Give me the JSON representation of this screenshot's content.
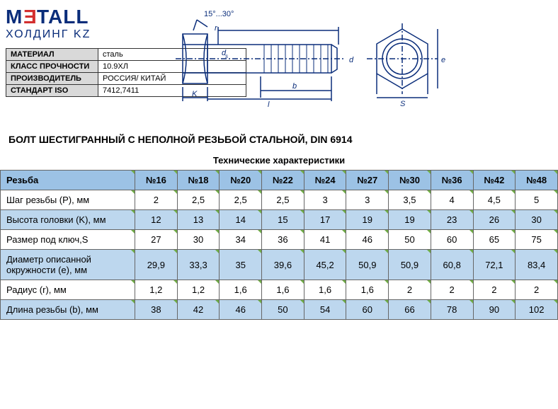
{
  "logo": {
    "text1": "M",
    "text2": "E",
    "text3": "TALL",
    "subtitle": "ХОЛДИНГ KZ"
  },
  "info": [
    {
      "label": "МАТЕРИАЛ",
      "value": "сталь"
    },
    {
      "label": "КЛАСС ПРОЧНОСТИ",
      "value": "10.9ХЛ"
    },
    {
      "label": "ПРОИЗВОДИТЕЛЬ",
      "value": "РОССИЯ/ КИТАЙ"
    },
    {
      "label": "СТАНДАРТ ISO",
      "value": "7412,7411"
    }
  ],
  "diagram_angle": "15°...30°",
  "title": "БОЛТ ШЕСТИГРАННЫЙ С НЕПОЛНОЙ РЕЗЬБОЙ СТАЛЬНОЙ, DIN 6914",
  "spec_title": "Технические характеристики",
  "columns_header": "Резьба",
  "columns": [
    "№16",
    "№18",
    "№20",
    "№22",
    "№24",
    "№27",
    "№30",
    "№36",
    "№42",
    "№48"
  ],
  "rows": [
    {
      "label": "Шаг резьбы (P), мм",
      "values": [
        "2",
        "2,5",
        "2,5",
        "2,5",
        "3",
        "3",
        "3,5",
        "4",
        "4,5",
        "5"
      ]
    },
    {
      "label": "Высота головки (K), мм",
      "values": [
        "12",
        "13",
        "14",
        "15",
        "17",
        "19",
        "19",
        "23",
        "26",
        "30"
      ]
    },
    {
      "label": "Размер под ключ,S",
      "values": [
        "27",
        "30",
        "34",
        "36",
        "41",
        "46",
        "50",
        "60",
        "65",
        "75"
      ]
    },
    {
      "label": "Диаметр описанной окружности (e), мм",
      "values": [
        "29,9",
        "33,3",
        "35",
        "39,6",
        "45,2",
        "50,9",
        "50,9",
        "60,8",
        "72,1",
        "83,4"
      ]
    },
    {
      "label": "Радиус (r), мм",
      "values": [
        "1,2",
        "1,2",
        "1,6",
        "1,6",
        "1,6",
        "1,6",
        "2",
        "2",
        "2",
        "2"
      ]
    },
    {
      "label": "Длина резьбы (b), мм",
      "values": [
        "38",
        "42",
        "46",
        "50",
        "54",
        "60",
        "66",
        "78",
        "90",
        "102"
      ]
    }
  ],
  "styling": {
    "header_bg": "#9cc2e5",
    "even_row_bg": "#bdd7ee",
    "odd_row_bg": "#ffffff",
    "border_color": "#666666",
    "corner_marker": "#70ad47",
    "logo_color": "#0a2d7a",
    "logo_accent": "#d32f2f",
    "info_label_bg": "#d9d9d9",
    "title_fontsize": 14,
    "cell_fontsize": 13
  }
}
